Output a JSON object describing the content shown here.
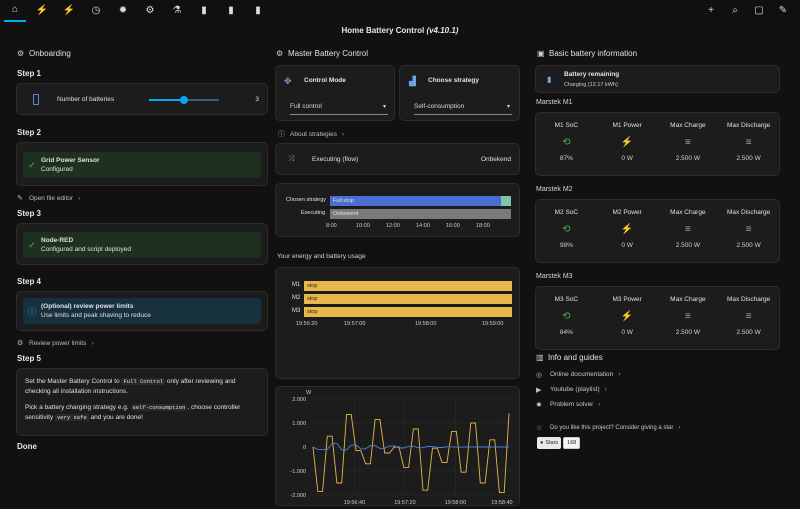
{
  "topbar": {
    "icons": [
      "home-icon",
      "transmission-tower-icon",
      "transmission-tower-export-icon",
      "timer-cog-icon",
      "bug-icon",
      "cog-icon",
      "flask-icon",
      "battery-charging-icon",
      "battery-charging-icon",
      "battery-charging-icon"
    ],
    "right_icons": [
      "plus-icon",
      "search-icon",
      "message-icon",
      "pencil-icon"
    ],
    "glyphs": {
      "home": "⌂",
      "tower1": "⚡",
      "tower2": "⚡",
      "timer": "◷",
      "bug": "✹",
      "cog": "⚙",
      "flask": "⚗",
      "bat1": "▮",
      "bat2": "▮",
      "bat3": "▮",
      "plus": "+",
      "search": "⌕",
      "chat": "▢",
      "edit": "✎"
    }
  },
  "title": {
    "main": "Home Battery Control",
    "version": "(v4.10.1)"
  },
  "col1": {
    "header": "Onboarding",
    "step1": {
      "label": "Step 1",
      "row_label": "Number of batteries",
      "value": "3",
      "slider_fraction": 0.5
    },
    "step2": {
      "label": "Step 2",
      "title": "Grid Power Sensor",
      "sub": "Configured"
    },
    "open_file_editor": "Open file editor",
    "step3": {
      "label": "Step 3",
      "title": "Node-RED",
      "sub": "Configured and script deployed"
    },
    "step4": {
      "label": "Step 4",
      "title": "(Optional) review power limits",
      "sub": "Use limits and peak shaving to reduce"
    },
    "review_power_limits": "Review power limits",
    "step5": {
      "label": "Step 5",
      "p1a": "Set the Master Battery Control to",
      "p1code": "Full Control",
      "p1b": "only after reviewing and checking all installation instructions.",
      "p2a": "Pick a battery charging strategy e.g.",
      "p2code": "self-consumption",
      "p2b": ", choose controller sensitivity",
      "p2code2": "very safe",
      "p2c": "and you are done!"
    },
    "done": "Done"
  },
  "col2": {
    "header": "Master Battery Control",
    "control_mode": {
      "title": "Control Mode",
      "value": "Full control"
    },
    "strategy": {
      "title": "Choose strategy",
      "value": "Self-consumption"
    },
    "about": "About strategies",
    "executing": {
      "label": "Executing (flow)",
      "value": "Onbekend"
    },
    "timeline": {
      "rows": [
        {
          "label": "Chosen strategy",
          "bar": "Full stop"
        },
        {
          "label": "Executing",
          "bar": "Onbekend"
        }
      ],
      "ticks": [
        "8:00",
        "10:00",
        "12:00",
        "14:00",
        "16:00",
        "18:00"
      ]
    },
    "energy_title": "Your energy and battery usage",
    "usage_chart": {
      "rows": [
        "M1",
        "M2",
        "M3"
      ],
      "bar_text": "stop",
      "ticks": [
        "19:56:20",
        "19:57:00",
        "19:58:00",
        "19:59:00"
      ]
    }
  },
  "chart_data": {
    "type": "line",
    "ylabel": "W",
    "ylim": [
      -2000,
      2000
    ],
    "yticks": [
      "2.000",
      "1.000",
      "0",
      "-1.000",
      "-2.000"
    ],
    "xticks": [
      "19:56:40",
      "19:57:20",
      "19:58:00",
      "19:58:40"
    ],
    "series": [
      {
        "color": "#e6b84a",
        "values": [
          0,
          -1850,
          -1850,
          450,
          450,
          -1500,
          -1500,
          1350,
          1350,
          -150,
          -150,
          -700,
          -700,
          1150,
          1150,
          -250,
          -250,
          0,
          0,
          -850,
          -850,
          750,
          750,
          -1800,
          -1800,
          -50,
          -50,
          -650,
          -650,
          650,
          650,
          -1050,
          -1050,
          1000,
          1000,
          -1500,
          -1500,
          300,
          300,
          -1900,
          -1900,
          1400
        ]
      },
      {
        "color": "#4a7fd4",
        "values": [
          0,
          -100,
          -100,
          -100,
          150,
          150,
          -120,
          -120,
          80,
          80,
          -80,
          -80,
          60,
          60,
          -60,
          -60,
          40,
          40,
          -40,
          -40,
          30,
          30,
          -30,
          -30,
          20,
          20,
          -20,
          -20,
          10,
          10,
          -10,
          -10,
          0,
          0,
          0,
          0,
          0,
          0,
          0,
          0,
          0,
          0
        ]
      }
    ]
  },
  "col3": {
    "header": "Basic battery information",
    "remaining": {
      "title": "Battery remaining",
      "sub": "Charging (12.17 kWh)"
    },
    "batteries": [
      {
        "name": "Marstek M1",
        "soc_label": "M1 SoC",
        "power_label": "M1 Power",
        "soc": "87%",
        "power": "0 W",
        "max_charge": "2.500 W",
        "max_discharge": "2.500 W"
      },
      {
        "name": "Marstek M2",
        "soc_label": "M2 SoC",
        "power_label": "M2 Power",
        "soc": "98%",
        "power": "0 W",
        "max_charge": "2.500 W",
        "max_discharge": "2.500 W"
      },
      {
        "name": "Marstek M3",
        "soc_label": "M3 SoC",
        "power_label": "M3 Power",
        "soc": "84%",
        "power": "0 W",
        "max_charge": "2.500 W",
        "max_discharge": "2.500 W"
      }
    ],
    "max_charge_label": "Max Charge",
    "max_discharge_label": "Max Discharge",
    "guides_title": "Info and guides",
    "guides": [
      "Online documentation",
      "Youtube (playlist)",
      "Problem solver"
    ],
    "like": "Do you like this project? Consider giving a star",
    "star": {
      "label": "Stars",
      "count": "168"
    }
  },
  "colors": {
    "accent": "#03a9f4",
    "success": "#4caf50",
    "bar_blue": "#4a6fd0",
    "bar_gray": "#7a7a7a",
    "bar_yellow": "#e8b84a"
  }
}
